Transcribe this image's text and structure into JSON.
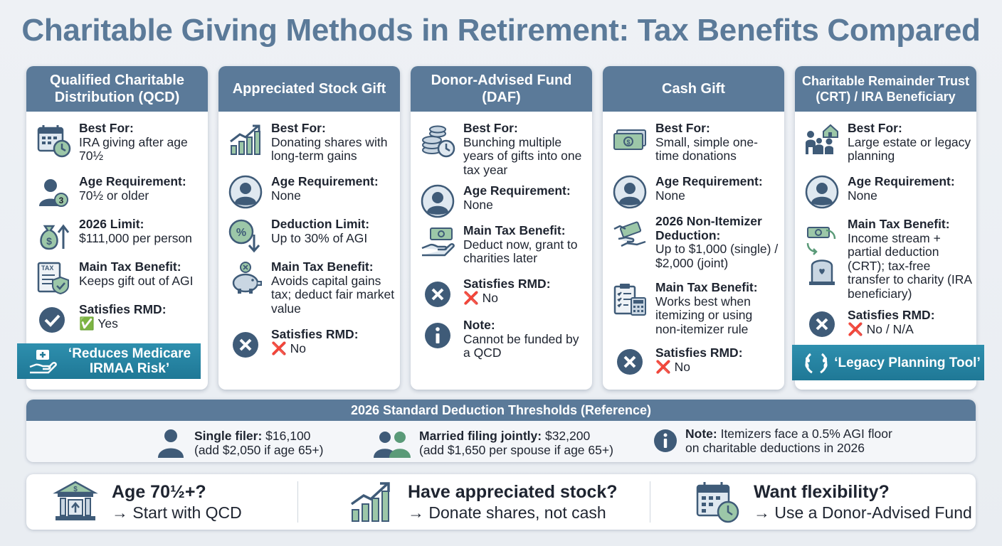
{
  "title": "Charitable Giving Methods in Retirement: Tax Benefits Compared",
  "colors": {
    "header": "#5b7a99",
    "ribbon": "#1f7896",
    "icon": "#3f5b78",
    "accent_green": "#5a9a78"
  },
  "cards": [
    {
      "header": "Qualified Charitable Distribution (QCD)",
      "items": [
        {
          "icon": "calendar-clock-icon",
          "label": "Best For:",
          "value": "IRA giving after age 70½"
        },
        {
          "icon": "person-age-icon",
          "label": "Age Requirement:",
          "value": "70½ or older"
        },
        {
          "icon": "money-bag-arrow-icon",
          "label": "2026 Limit:",
          "value": "$111,000 per person"
        },
        {
          "icon": "tax-document-shield-icon",
          "label": "Main Tax Benefit:",
          "value": "Keeps gift out of AGI"
        },
        {
          "icon": "checkmark-circle-icon",
          "label": "Satisfies RMD:",
          "mark": "✅",
          "value": "Yes"
        }
      ],
      "ribbon": "‘Reduces Medicare IRMAA Risk’"
    },
    {
      "header": "Appreciated Stock Gift",
      "items": [
        {
          "icon": "growth-chart-icon",
          "label": "Best For:",
          "value": "Donating shares with long-term gains"
        },
        {
          "icon": "person-icon",
          "label": "Age Requirement:",
          "value": "None"
        },
        {
          "icon": "percent-down-icon",
          "label": "Deduction Limit:",
          "value": "Up to 30% of AGI"
        },
        {
          "icon": "piggy-bank-icon",
          "label": "Main Tax Benefit:",
          "value": "Avoids capital gains tax; deduct fair market value"
        },
        {
          "icon": "x-circle-icon",
          "label": "Satisfies RMD:",
          "mark": "❌",
          "value": "No"
        }
      ]
    },
    {
      "header": "Donor-Advised Fund (DAF)",
      "items": [
        {
          "icon": "coins-clock-icon",
          "label": "Best For:",
          "value": "Bunching multiple years of gifts into one tax year"
        },
        {
          "icon": "person-icon",
          "label": "Age Requirement:",
          "value": "None"
        },
        {
          "icon": "hand-cash-icon",
          "label": "Main Tax Benefit:",
          "value": "Deduct now, grant to charities later"
        },
        {
          "icon": "x-circle-icon",
          "label": "Satisfies RMD:",
          "mark": "❌",
          "value": "No"
        },
        {
          "icon": "info-icon",
          "label": "Note:",
          "value": "Cannot be funded by a QCD"
        }
      ]
    },
    {
      "header": "Cash Gift",
      "items": [
        {
          "icon": "cash-bills-icon",
          "label": "Best For:",
          "value": "Small, simple one-time donations"
        },
        {
          "icon": "person-icon",
          "label": "Age Requirement:",
          "value": "None"
        },
        {
          "icon": "hand-giving-cash-icon",
          "label": "2026 Non-Itemizer Deduction:",
          "value": "Up to $1,000 (single) / $2,000 (joint)"
        },
        {
          "icon": "clipboard-calculator-icon",
          "label": "Main Tax Benefit:",
          "value": "Works best when itemizing or using non-itemizer rule"
        },
        {
          "icon": "x-circle-icon",
          "label": "Satisfies RMD:",
          "mark": "❌",
          "value": "No"
        }
      ]
    },
    {
      "header": "Charitable Remainder Trust (CRT) / IRA Beneficiary",
      "items": [
        {
          "icon": "family-house-icon",
          "label": "Best For:",
          "value": "Large estate or legacy planning"
        },
        {
          "icon": "person-icon",
          "label": "Age Requirement:",
          "value": "None"
        },
        {
          "icon": "money-cycle-headstone-icon",
          "label": "Main Tax Benefit:",
          "value": "Income stream + partial deduction (CRT); tax-free transfer to charity (IRA beneficiary)"
        },
        {
          "icon": "x-circle-icon",
          "label": "Satisfies RMD:",
          "mark": "❌",
          "value": "No / N/A"
        }
      ],
      "ribbon": "‘Legacy Planning Tool’"
    }
  ],
  "reference": {
    "header": "2026 Standard Deduction Thresholds (Reference)",
    "items": [
      {
        "icon": "person-icon",
        "label": "Single filer:",
        "value": " $16,100",
        "sub": "(add $2,050 if age 65+)"
      },
      {
        "icon": "couple-icon",
        "label": "Married filing jointly:",
        "value": " $32,200",
        "sub": "(add $1,650 per spouse if age 65+)"
      },
      {
        "icon": "info-icon",
        "label": "Note:",
        "value": " Itemizers face a 0.5% AGI floor",
        "sub": "on charitable deductions in 2026"
      }
    ]
  },
  "tips": [
    {
      "icon": "bank-icon",
      "title": "Age 70½+?",
      "sub": "→ Start with QCD"
    },
    {
      "icon": "growth-chart-icon",
      "title": "Have appreciated stock?",
      "sub": "→ Donate shares, not cash"
    },
    {
      "icon": "calendar-clock-icon",
      "title": "Want flexibility?",
      "sub": "→ Use a Donor-Advised Fund"
    }
  ]
}
